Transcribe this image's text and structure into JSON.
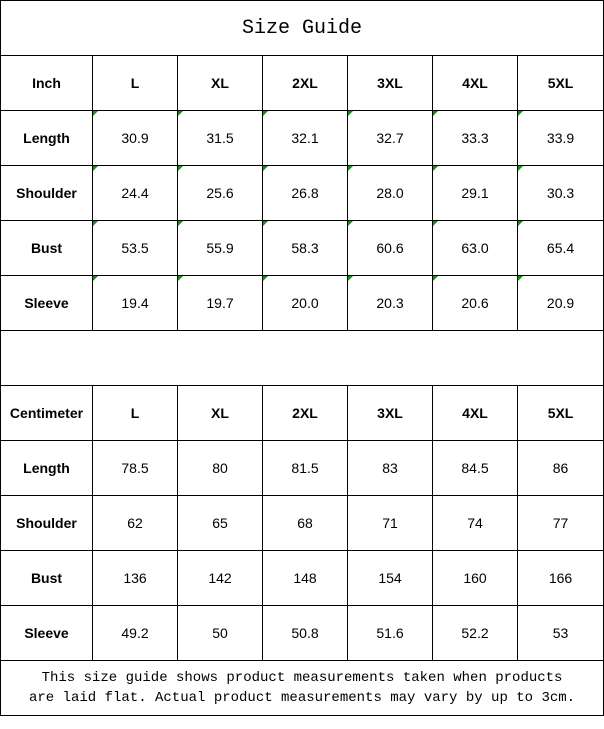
{
  "title": "Size Guide",
  "sizes": [
    "L",
    "XL",
    "2XL",
    "3XL",
    "4XL",
    "5XL"
  ],
  "inch": {
    "label": "Inch",
    "rows": [
      {
        "label": "Length",
        "values": [
          "30.9",
          "31.5",
          "32.1",
          "32.7",
          "33.3",
          "33.9"
        ]
      },
      {
        "label": "Shoulder",
        "values": [
          "24.4",
          "25.6",
          "26.8",
          "28.0",
          "29.1",
          "30.3"
        ]
      },
      {
        "label": "Bust",
        "values": [
          "53.5",
          "55.9",
          "58.3",
          "60.6",
          "63.0",
          "65.4"
        ]
      },
      {
        "label": "Sleeve",
        "values": [
          "19.4",
          "19.7",
          "20.0",
          "20.3",
          "20.6",
          "20.9"
        ]
      }
    ]
  },
  "centimeter": {
    "label": "Centimeter",
    "rows": [
      {
        "label": "Length",
        "values": [
          "78.5",
          "80",
          "81.5",
          "83",
          "84.5",
          "86"
        ]
      },
      {
        "label": "Shoulder",
        "values": [
          "62",
          "65",
          "68",
          "71",
          "74",
          "77"
        ]
      },
      {
        "label": "Bust",
        "values": [
          "136",
          "142",
          "148",
          "154",
          "160",
          "166"
        ]
      },
      {
        "label": "Sleeve",
        "values": [
          "49.2",
          "50",
          "50.8",
          "51.6",
          "52.2",
          "53"
        ]
      }
    ]
  },
  "note_line1": "This size guide shows product measurements taken when products",
  "note_line2": "are laid flat. Actual product measurements may vary by up to 3cm.",
  "colors": {
    "text_indicator": "#1a8a1a",
    "border": "#000000"
  }
}
